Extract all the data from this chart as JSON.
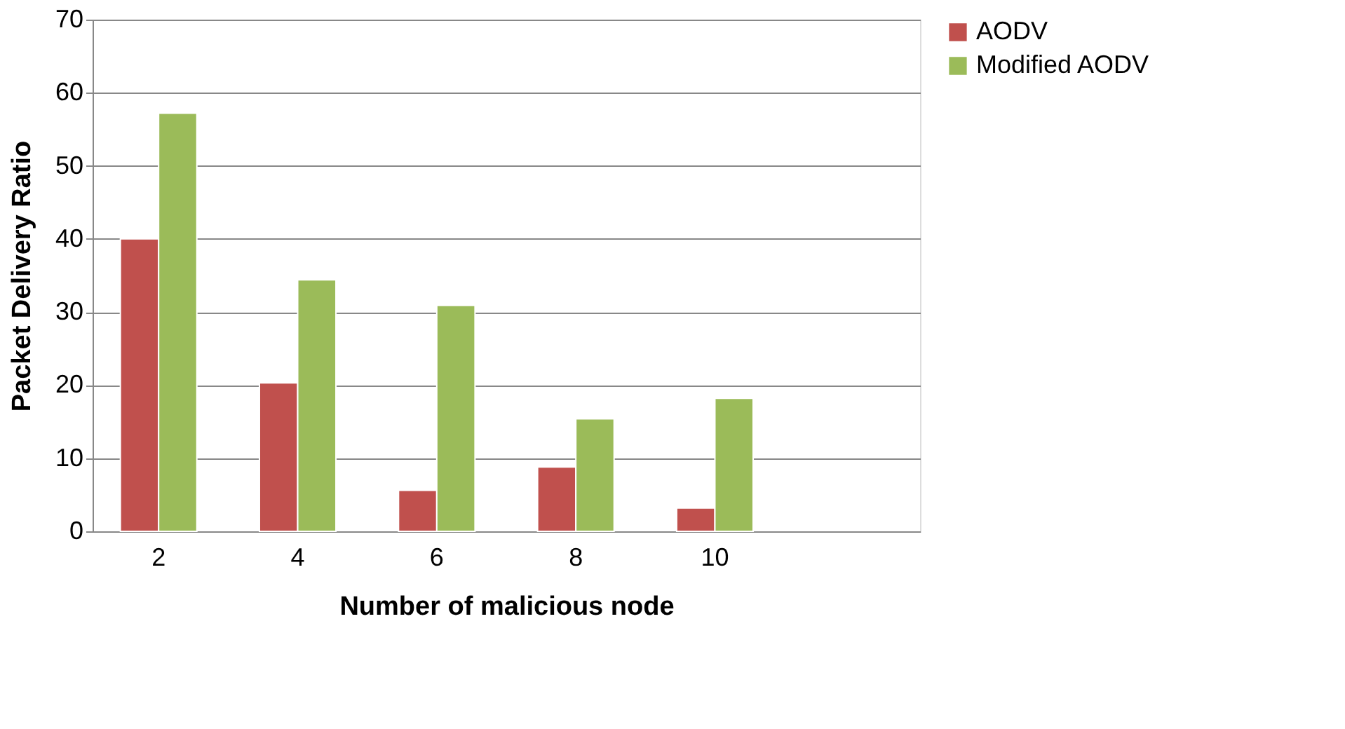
{
  "chart_data": {
    "type": "bar",
    "xlabel": "Number of malicious node",
    "ylabel": "Packet Delivery Ratio",
    "categories": [
      "2",
      "4",
      "6",
      "8",
      "10",
      null
    ],
    "series": [
      {
        "name": "AODV",
        "color": "#c0504d",
        "values": [
          40,
          20.3,
          5.6,
          8.8,
          3.2,
          null
        ]
      },
      {
        "name": "Modified AODV",
        "color": "#9bbb59",
        "values": [
          57.2,
          34.4,
          30.9,
          15.4,
          18.2,
          null
        ]
      }
    ],
    "ylim": [
      0,
      70
    ],
    "yticks": [
      0,
      10,
      20,
      30,
      40,
      50,
      60,
      70
    ],
    "grid": "y",
    "legend": "right"
  }
}
